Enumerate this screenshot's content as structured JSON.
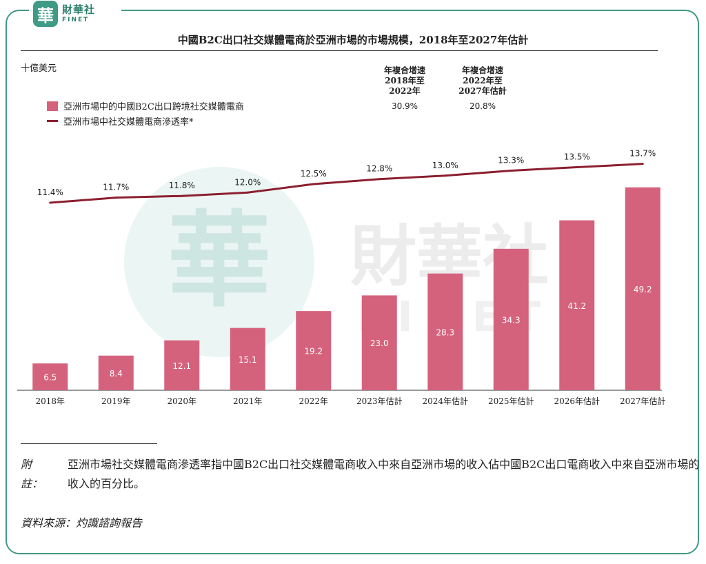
{
  "logo": {
    "seal": "華",
    "cn": "財華社",
    "en": "FINET",
    "watermark_cn": "財華社",
    "watermark_en": "FINET"
  },
  "title": "中國B2C出口社交媒體電商於亞洲市場的市場規模，2018年至2027年估計",
  "unit": "十億美元",
  "legend": {
    "bar": "亞洲市場中的中國B2C出口跨境社交媒體電商",
    "line": "亞洲市場中社交媒體電商滲透率*"
  },
  "cagr": [
    {
      "label": "年複合增速\n2018年至\n2022年",
      "value": "30.9%"
    },
    {
      "label": "年複合增速\n2022年至\n2027年估計",
      "value": "20.8%"
    }
  ],
  "chart_data": {
    "type": "bar",
    "categories": [
      "2018年",
      "2019年",
      "2020年",
      "2021年",
      "2022年",
      "2023年估計",
      "2024年估計",
      "2025年估計",
      "2026年估計",
      "2027年估計"
    ],
    "series": [
      {
        "name": "亞洲市場中的中國B2C出口跨境社交媒體電商",
        "type": "bar",
        "values": [
          6.5,
          8.4,
          12.1,
          15.1,
          19.2,
          23.0,
          28.3,
          34.3,
          41.2,
          49.2
        ],
        "labels": [
          "6.5",
          "8.4",
          "12.1",
          "15.1",
          "19.2",
          "23.0",
          "28.3",
          "34.3",
          "41.2",
          "49.2"
        ],
        "color": "#d5627c"
      },
      {
        "name": "亞洲市場中社交媒體電商滲透率*",
        "type": "line",
        "values": [
          11.4,
          11.7,
          11.8,
          12.0,
          12.5,
          12.8,
          13.0,
          13.3,
          13.5,
          13.7
        ],
        "labels": [
          "11.4%",
          "11.7%",
          "11.8%",
          "12.0%",
          "12.5%",
          "12.8%",
          "13.0%",
          "13.3%",
          "13.5%",
          "13.7%"
        ],
        "color": "#8b1f2e"
      }
    ],
    "ylim": [
      0,
      55
    ]
  },
  "note": {
    "label": "附註：",
    "body": "亞洲市場社交媒體電商滲透率指中國B2C出口社交媒體電商收入中來自亞洲市場的收入佔中國B2C出口電商收入中來自亞洲市場的收入的百分比。"
  },
  "source": "資料來源：灼識諮詢報告",
  "colors": {
    "frame": "#3f9a86",
    "bar": "#d5627c",
    "line": "#8b1f2e"
  }
}
